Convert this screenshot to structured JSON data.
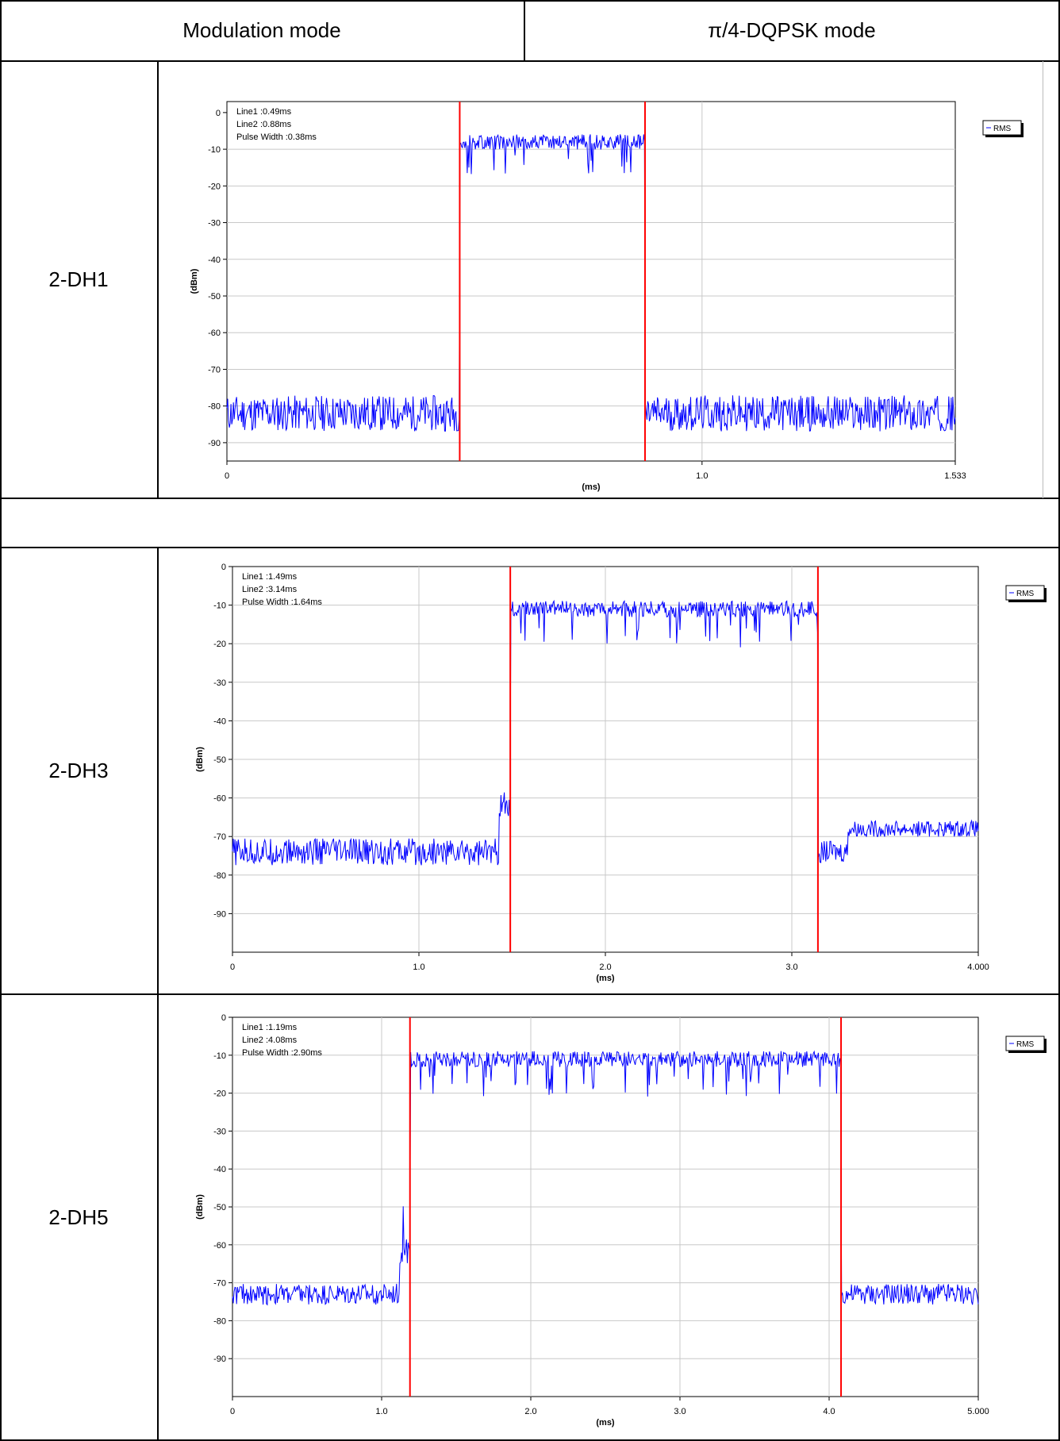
{
  "table": {
    "header": {
      "col1": "Modulation mode",
      "col2": "π/4-DQPSK mode"
    },
    "rows": [
      {
        "label": "2-DH1"
      },
      {
        "label": ""
      },
      {
        "label": "2-DH3"
      },
      {
        "label": "2-DH5"
      }
    ]
  },
  "chart_data": [
    {
      "type": "line",
      "title": "",
      "xlabel": "(ms)",
      "ylabel": "(dBm)",
      "xlim": [
        0,
        1.533
      ],
      "ylim": [
        -95,
        3
      ],
      "x_ticks": [
        0,
        1.0,
        1.533
      ],
      "x_tick_labels": [
        "0",
        "1.0",
        "1.533"
      ],
      "y_ticks": [
        0,
        -10,
        -20,
        -30,
        -40,
        -50,
        -60,
        -70,
        -80,
        -90
      ],
      "y_tick_labels": [
        "0",
        "-10",
        "-20",
        "-30",
        "-40",
        "-50",
        "-60",
        "-70",
        "-80",
        "-90"
      ],
      "grid": true,
      "legend": {
        "label": "RMS",
        "placement": "top-right"
      },
      "annotations": [
        "Line1 :0.49ms",
        "Line2 :0.88ms",
        "Pulse Width :0.38ms"
      ],
      "markers": [
        0.49,
        0.88
      ],
      "series": [
        {
          "name": "RMS",
          "color": "#0000ff",
          "segments": [
            {
              "x0": 0,
              "x1": 0.49,
              "level": -82,
              "noise": 7
            },
            {
              "x0": 0.49,
              "x1": 0.88,
              "level": -8,
              "noise": 3,
              "dips": -17
            },
            {
              "x0": 0.88,
              "x1": 1.533,
              "level": -82,
              "noise": 7
            }
          ]
        }
      ]
    },
    {
      "type": "line",
      "title": "",
      "xlabel": "(ms)",
      "ylabel": "(dBm)",
      "xlim": [
        0,
        4.0
      ],
      "ylim": [
        -100,
        0
      ],
      "x_ticks": [
        0,
        1.0,
        2.0,
        3.0,
        4.0
      ],
      "x_tick_labels": [
        "0",
        "1.0",
        "2.0",
        "3.0",
        "4.000"
      ],
      "y_ticks": [
        0,
        -10,
        -20,
        -30,
        -40,
        -50,
        -60,
        -70,
        -80,
        -90
      ],
      "y_tick_labels": [
        "0",
        "-10",
        "-20",
        "-30",
        "-40",
        "-50",
        "-60",
        "-70",
        "-80",
        "-90"
      ],
      "grid": true,
      "legend": {
        "label": "RMS",
        "placement": "top-right"
      },
      "annotations": [
        "Line1 :1.49ms",
        "Line2 :3.14ms",
        "Pulse Width :1.64ms"
      ],
      "markers": [
        1.49,
        3.14
      ],
      "series": [
        {
          "name": "RMS",
          "color": "#0000ff",
          "segments": [
            {
              "x0": 0,
              "x1": 1.43,
              "level": -74,
              "noise": 5
            },
            {
              "x0": 1.43,
              "x1": 1.49,
              "level": -62,
              "noise": 5,
              "spike": -50
            },
            {
              "x0": 1.49,
              "x1": 3.14,
              "level": -11,
              "noise": 3,
              "dips": -21
            },
            {
              "x0": 3.14,
              "x1": 3.3,
              "level": -74,
              "noise": 4
            },
            {
              "x0": 3.3,
              "x1": 4.0,
              "level": -68,
              "noise": 3
            }
          ]
        }
      ]
    },
    {
      "type": "line",
      "title": "",
      "xlabel": "(ms)",
      "ylabel": "(dBm)",
      "xlim": [
        0,
        5.0
      ],
      "ylim": [
        -100,
        0
      ],
      "x_ticks": [
        0,
        1.0,
        2.0,
        3.0,
        4.0,
        5.0
      ],
      "x_tick_labels": [
        "0",
        "1.0",
        "2.0",
        "3.0",
        "4.0",
        "5.000"
      ],
      "y_ticks": [
        0,
        -10,
        -20,
        -30,
        -40,
        -50,
        -60,
        -70,
        -80,
        -90
      ],
      "y_tick_labels": [
        "0",
        "-10",
        "-20",
        "-30",
        "-40",
        "-50",
        "-60",
        "-70",
        "-80",
        "-90"
      ],
      "grid": true,
      "legend": {
        "label": "RMS",
        "placement": "top-right"
      },
      "annotations": [
        "Line1 :1.19ms",
        "Line2 :4.08ms",
        "Pulse Width :2.90ms"
      ],
      "markers": [
        1.19,
        4.08
      ],
      "series": [
        {
          "name": "RMS",
          "color": "#0000ff",
          "segments": [
            {
              "x0": 0,
              "x1": 1.12,
              "level": -73,
              "noise": 4
            },
            {
              "x0": 1.12,
              "x1": 1.19,
              "level": -62,
              "noise": 5,
              "spike": -51
            },
            {
              "x0": 1.19,
              "x1": 4.08,
              "level": -11,
              "noise": 3,
              "dips": -21
            },
            {
              "x0": 4.08,
              "x1": 5.0,
              "level": -73,
              "noise": 4
            }
          ]
        }
      ]
    }
  ]
}
